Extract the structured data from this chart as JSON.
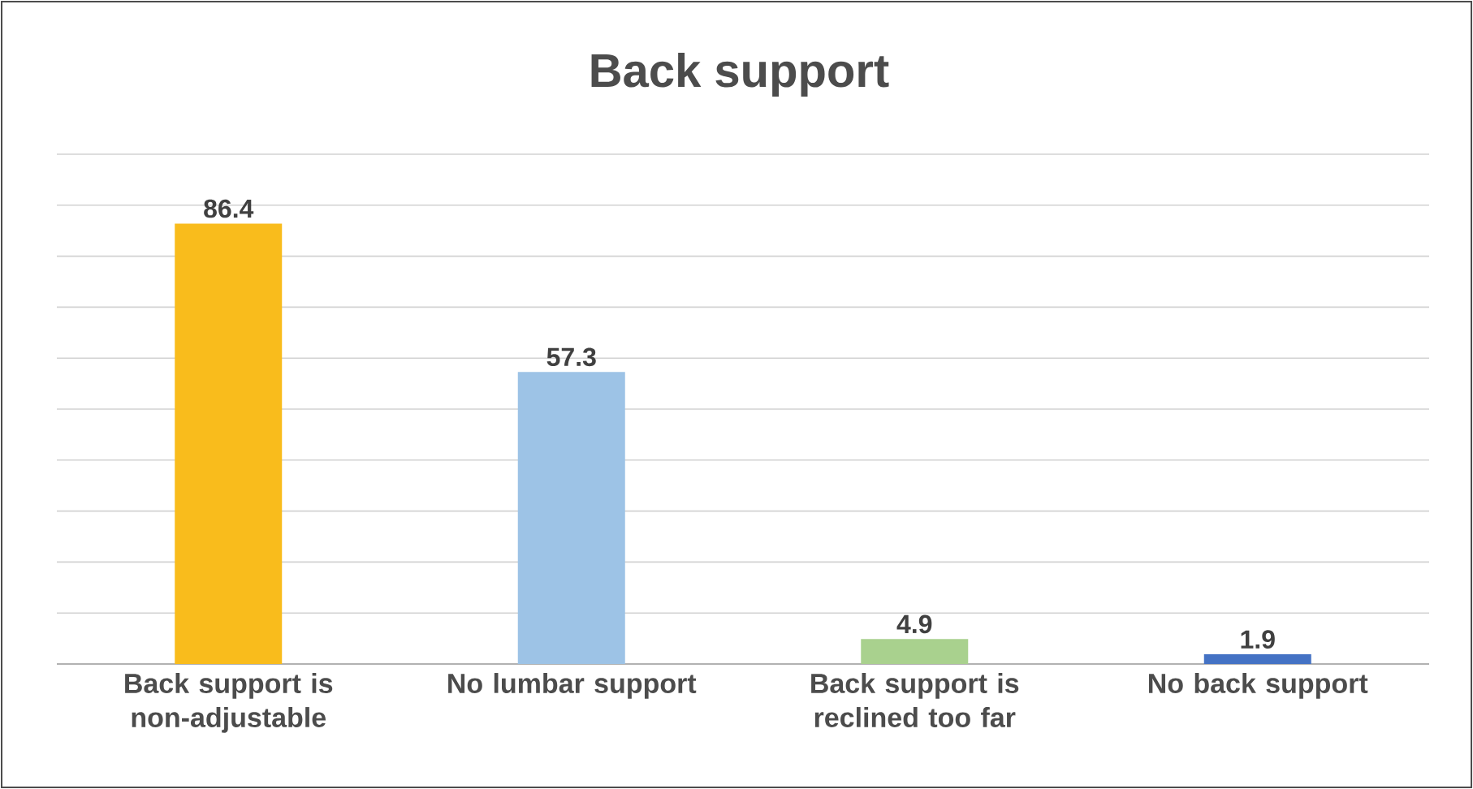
{
  "chart_data": {
    "type": "bar",
    "title": "Back support",
    "categories": [
      "Back support is non-adjustable",
      "No lumbar support",
      "Back support is reclined too far",
      "No back support"
    ],
    "values": [
      86.4,
      57.3,
      4.9,
      1.9
    ],
    "colors": [
      "#f9bc1c",
      "#9dc3e6",
      "#a9d18e",
      "#4472c4"
    ],
    "ylim": [
      0,
      100
    ],
    "yticks": [
      {
        "value": 0,
        "label": null
      },
      {
        "value": 10,
        "label": null
      },
      {
        "value": 20,
        "label": null
      },
      {
        "value": 30,
        "label": null
      },
      {
        "value": 40,
        "label": null
      },
      {
        "value": 50,
        "label": null
      },
      {
        "value": 60,
        "label": null
      },
      {
        "value": 70,
        "label": null
      },
      {
        "value": 80,
        "label": null
      },
      {
        "value": 90,
        "label": null
      },
      {
        "value": 100,
        "label": null
      }
    ],
    "tick_labels": "x",
    "grid": "y",
    "data_labels": true
  }
}
